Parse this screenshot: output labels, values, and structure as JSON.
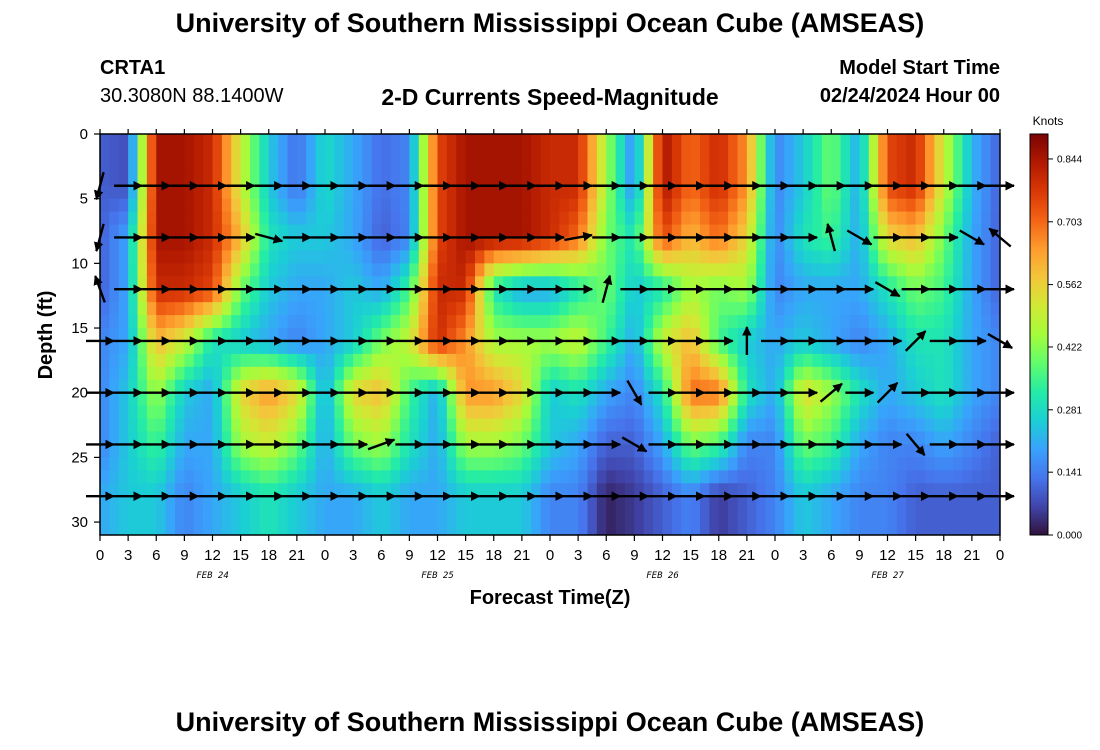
{
  "page": {
    "title": "University of Southern Mississippi Ocean Cube (AMSEAS)",
    "footer_title": "University of Southern Mississippi Ocean Cube (AMSEAS)",
    "station_id": "CRTA1",
    "station_coords": "30.3080N  88.1400W",
    "subtitle": "2-D Currents Speed-Magnitude",
    "model_start_label": "Model Start Time",
    "model_start_time": "02/24/2024 Hour 00"
  },
  "chart_data": {
    "type": "heatmap",
    "title": "2-D Currents Speed-Magnitude",
    "xlabel": "Forecast Time(Z)",
    "ylabel": "Depth (ft)",
    "x_unit": "hours from 02/24/2024 00Z",
    "xlim": [
      0,
      96
    ],
    "ylim": [
      0,
      31
    ],
    "y_inverted": true,
    "x_tick_step_hours": 3,
    "x_ticks": [
      "0",
      "3",
      "6",
      "9",
      "12",
      "15",
      "18",
      "21",
      "0",
      "3",
      "6",
      "9",
      "12",
      "15",
      "18",
      "21",
      "0",
      "3",
      "6",
      "9",
      "12",
      "15",
      "18",
      "21",
      "0",
      "3",
      "6",
      "9",
      "12",
      "15",
      "18",
      "21",
      "0"
    ],
    "day_labels": [
      {
        "label": "FEB 24",
        "hour": 12
      },
      {
        "label": "FEB 25",
        "hour": 36
      },
      {
        "label": "FEB 26",
        "hour": 60
      },
      {
        "label": "FEB 27",
        "hour": 84
      }
    ],
    "y_ticks": [
      0,
      5,
      10,
      15,
      20,
      25,
      30
    ],
    "colorbar": {
      "label": "Knots",
      "ticks": [
        "0.844",
        "0.703",
        "0.562",
        "0.422",
        "0.281",
        "0.141",
        "0.000"
      ],
      "tick_values": [
        0.844,
        0.703,
        0.562,
        0.422,
        0.281,
        0.141,
        0.0
      ],
      "range": [
        0.0,
        0.9
      ],
      "colors": [
        "#30123b",
        "#4145ab",
        "#4675ed",
        "#39a2fc",
        "#1bcfd4",
        "#24eca6",
        "#61fc6c",
        "#a4fc3b",
        "#d1e834",
        "#f3c63a",
        "#fe9b2d",
        "#f36315",
        "#d93806",
        "#b11901",
        "#7a0403"
      ]
    },
    "depth_layers": [
      4,
      8,
      12,
      16,
      20,
      24,
      28
    ],
    "layer_speed_profiles": [
      {
        "depth": 4,
        "speeds": [
          0.1,
          0.08,
          0.85,
          0.85,
          0.8,
          0.5,
          0.25,
          0.12,
          0.28,
          0.2,
          0.12,
          0.15,
          0.75,
          0.85,
          0.85,
          0.85,
          0.8,
          0.8,
          0.45,
          0.15,
          0.85,
          0.7,
          0.8,
          0.65,
          0.15,
          0.25,
          0.4,
          0.2,
          0.75,
          0.8,
          0.5,
          0.22,
          0.1
        ]
      },
      {
        "depth": 8,
        "speeds": [
          0.1,
          0.2,
          0.85,
          0.85,
          0.8,
          0.6,
          0.3,
          0.25,
          0.25,
          0.2,
          0.1,
          0.15,
          0.75,
          0.85,
          0.85,
          0.85,
          0.8,
          0.7,
          0.4,
          0.3,
          0.75,
          0.6,
          0.7,
          0.55,
          0.15,
          0.3,
          0.35,
          0.2,
          0.55,
          0.6,
          0.4,
          0.2,
          0.1
        ]
      },
      {
        "depth": 12,
        "speeds": [
          0.1,
          0.2,
          0.8,
          0.8,
          0.75,
          0.4,
          0.25,
          0.2,
          0.2,
          0.25,
          0.2,
          0.35,
          0.8,
          0.8,
          0.3,
          0.2,
          0.2,
          0.3,
          0.4,
          0.25,
          0.3,
          0.45,
          0.4,
          0.45,
          0.15,
          0.2,
          0.2,
          0.2,
          0.3,
          0.4,
          0.35,
          0.2,
          0.1
        ]
      },
      {
        "depth": 16,
        "speeds": [
          0.15,
          0.2,
          0.6,
          0.5,
          0.3,
          0.25,
          0.2,
          0.15,
          0.2,
          0.25,
          0.4,
          0.5,
          0.8,
          0.65,
          0.45,
          0.45,
          0.45,
          0.5,
          0.35,
          0.2,
          0.5,
          0.6,
          0.35,
          0.25,
          0.2,
          0.25,
          0.2,
          0.15,
          0.2,
          0.3,
          0.3,
          0.2,
          0.15
        ]
      },
      {
        "depth": 20,
        "speeds": [
          0.15,
          0.25,
          0.45,
          0.25,
          0.2,
          0.55,
          0.65,
          0.55,
          0.2,
          0.55,
          0.6,
          0.35,
          0.2,
          0.65,
          0.65,
          0.55,
          0.25,
          0.3,
          0.2,
          0.15,
          0.3,
          0.7,
          0.7,
          0.3,
          0.2,
          0.55,
          0.45,
          0.3,
          0.2,
          0.25,
          0.3,
          0.2,
          0.15
        ]
      },
      {
        "depth": 24,
        "speeds": [
          0.15,
          0.25,
          0.35,
          0.2,
          0.2,
          0.45,
          0.5,
          0.4,
          0.2,
          0.4,
          0.45,
          0.3,
          0.2,
          0.45,
          0.45,
          0.4,
          0.25,
          0.2,
          0.1,
          0.1,
          0.2,
          0.4,
          0.35,
          0.15,
          0.15,
          0.4,
          0.35,
          0.2,
          0.15,
          0.15,
          0.2,
          0.15,
          0.1
        ]
      },
      {
        "depth": 28,
        "speeds": [
          0.2,
          0.25,
          0.25,
          0.15,
          0.2,
          0.25,
          0.3,
          0.25,
          0.2,
          0.2,
          0.25,
          0.2,
          0.2,
          0.25,
          0.25,
          0.25,
          0.15,
          0.15,
          0.02,
          0.05,
          0.1,
          0.15,
          0.05,
          0.1,
          0.15,
          0.25,
          0.2,
          0.15,
          0.15,
          0.1,
          0.1,
          0.1,
          0.1
        ]
      }
    ],
    "vector_rows": [
      {
        "depth": 4,
        "vectors": [
          [
            0,
            195
          ],
          [
            3,
            90
          ],
          [
            6,
            90
          ],
          [
            9,
            90
          ],
          [
            12,
            90
          ],
          [
            15,
            90
          ],
          [
            18,
            90
          ],
          [
            21,
            90
          ],
          [
            24,
            90
          ],
          [
            27,
            90
          ],
          [
            30,
            90
          ],
          [
            33,
            90
          ],
          [
            36,
            90
          ],
          [
            39,
            90
          ],
          [
            42,
            90
          ],
          [
            45,
            90
          ],
          [
            48,
            90
          ],
          [
            51,
            90
          ],
          [
            54,
            90
          ],
          [
            57,
            90
          ],
          [
            60,
            90
          ],
          [
            63,
            90
          ],
          [
            66,
            90
          ],
          [
            69,
            90
          ],
          [
            72,
            90
          ],
          [
            75,
            90
          ],
          [
            78,
            90
          ],
          [
            81,
            90
          ],
          [
            84,
            90
          ],
          [
            87,
            90
          ],
          [
            90,
            90
          ],
          [
            93,
            90
          ],
          [
            96,
            90
          ]
        ]
      },
      {
        "depth": 8,
        "vectors": [
          [
            0,
            195
          ],
          [
            3,
            90
          ],
          [
            6,
            90
          ],
          [
            9,
            90
          ],
          [
            12,
            90
          ],
          [
            15,
            90
          ],
          [
            18,
            105
          ],
          [
            21,
            90
          ],
          [
            24,
            90
          ],
          [
            27,
            90
          ],
          [
            30,
            90
          ],
          [
            33,
            90
          ],
          [
            36,
            90
          ],
          [
            39,
            90
          ],
          [
            42,
            90
          ],
          [
            45,
            90
          ],
          [
            48,
            90
          ],
          [
            51,
            80
          ],
          [
            54,
            90
          ],
          [
            57,
            90
          ],
          [
            60,
            90
          ],
          [
            63,
            90
          ],
          [
            66,
            90
          ],
          [
            69,
            90
          ],
          [
            72,
            90
          ],
          [
            75,
            90
          ],
          [
            78,
            345
          ],
          [
            81,
            120
          ],
          [
            84,
            90
          ],
          [
            87,
            90
          ],
          [
            90,
            90
          ],
          [
            93,
            120
          ],
          [
            96,
            310
          ]
        ]
      },
      {
        "depth": 12,
        "vectors": [
          [
            0,
            340
          ],
          [
            3,
            90
          ],
          [
            6,
            90
          ],
          [
            9,
            90
          ],
          [
            12,
            90
          ],
          [
            15,
            90
          ],
          [
            18,
            90
          ],
          [
            21,
            90
          ],
          [
            24,
            90
          ],
          [
            27,
            90
          ],
          [
            30,
            90
          ],
          [
            33,
            90
          ],
          [
            36,
            90
          ],
          [
            39,
            90
          ],
          [
            42,
            90
          ],
          [
            45,
            90
          ],
          [
            48,
            90
          ],
          [
            51,
            90
          ],
          [
            54,
            15
          ],
          [
            57,
            90
          ],
          [
            60,
            90
          ],
          [
            63,
            90
          ],
          [
            66,
            90
          ],
          [
            69,
            90
          ],
          [
            72,
            90
          ],
          [
            75,
            90
          ],
          [
            78,
            90
          ],
          [
            81,
            90
          ],
          [
            84,
            120
          ],
          [
            87,
            90
          ],
          [
            90,
            90
          ],
          [
            93,
            90
          ],
          [
            96,
            90
          ]
        ]
      },
      {
        "depth": 16,
        "vectors": [
          [
            0,
            90
          ],
          [
            3,
            90
          ],
          [
            6,
            90
          ],
          [
            9,
            90
          ],
          [
            12,
            90
          ],
          [
            15,
            90
          ],
          [
            18,
            90
          ],
          [
            21,
            90
          ],
          [
            24,
            90
          ],
          [
            27,
            90
          ],
          [
            30,
            90
          ],
          [
            33,
            90
          ],
          [
            36,
            90
          ],
          [
            39,
            90
          ],
          [
            42,
            90
          ],
          [
            45,
            90
          ],
          [
            48,
            90
          ],
          [
            51,
            90
          ],
          [
            54,
            90
          ],
          [
            57,
            90
          ],
          [
            60,
            90
          ],
          [
            63,
            90
          ],
          [
            66,
            90
          ],
          [
            69,
            0
          ],
          [
            72,
            90
          ],
          [
            75,
            90
          ],
          [
            78,
            90
          ],
          [
            81,
            90
          ],
          [
            84,
            90
          ],
          [
            87,
            45
          ],
          [
            90,
            90
          ],
          [
            93,
            90
          ],
          [
            96,
            120
          ]
        ]
      },
      {
        "depth": 20,
        "vectors": [
          [
            0,
            90
          ],
          [
            3,
            90
          ],
          [
            6,
            90
          ],
          [
            9,
            90
          ],
          [
            12,
            90
          ],
          [
            15,
            90
          ],
          [
            18,
            90
          ],
          [
            21,
            90
          ],
          [
            24,
            90
          ],
          [
            27,
            90
          ],
          [
            30,
            90
          ],
          [
            33,
            90
          ],
          [
            36,
            90
          ],
          [
            39,
            90
          ],
          [
            42,
            90
          ],
          [
            45,
            90
          ],
          [
            48,
            90
          ],
          [
            51,
            90
          ],
          [
            54,
            90
          ],
          [
            57,
            150
          ],
          [
            60,
            90
          ],
          [
            63,
            90
          ],
          [
            66,
            90
          ],
          [
            69,
            90
          ],
          [
            72,
            90
          ],
          [
            75,
            90
          ],
          [
            78,
            50
          ],
          [
            81,
            90
          ],
          [
            84,
            45
          ],
          [
            87,
            90
          ],
          [
            90,
            90
          ],
          [
            93,
            90
          ],
          [
            96,
            90
          ]
        ]
      },
      {
        "depth": 24,
        "vectors": [
          [
            0,
            90
          ],
          [
            3,
            90
          ],
          [
            6,
            90
          ],
          [
            9,
            90
          ],
          [
            12,
            90
          ],
          [
            15,
            90
          ],
          [
            18,
            90
          ],
          [
            21,
            90
          ],
          [
            24,
            90
          ],
          [
            27,
            90
          ],
          [
            30,
            70
          ],
          [
            33,
            90
          ],
          [
            36,
            90
          ],
          [
            39,
            90
          ],
          [
            42,
            90
          ],
          [
            45,
            90
          ],
          [
            48,
            90
          ],
          [
            51,
            90
          ],
          [
            54,
            90
          ],
          [
            57,
            120
          ],
          [
            60,
            90
          ],
          [
            63,
            90
          ],
          [
            66,
            90
          ],
          [
            69,
            90
          ],
          [
            72,
            90
          ],
          [
            75,
            90
          ],
          [
            78,
            90
          ],
          [
            81,
            90
          ],
          [
            84,
            90
          ],
          [
            87,
            140
          ],
          [
            90,
            90
          ],
          [
            93,
            90
          ],
          [
            96,
            90
          ]
        ]
      },
      {
        "depth": 28,
        "vectors": [
          [
            0,
            90
          ],
          [
            3,
            90
          ],
          [
            6,
            90
          ],
          [
            9,
            90
          ],
          [
            12,
            90
          ],
          [
            15,
            90
          ],
          [
            18,
            90
          ],
          [
            21,
            90
          ],
          [
            24,
            90
          ],
          [
            27,
            90
          ],
          [
            30,
            90
          ],
          [
            33,
            90
          ],
          [
            36,
            90
          ],
          [
            39,
            90
          ],
          [
            42,
            90
          ],
          [
            45,
            90
          ],
          [
            48,
            90
          ],
          [
            51,
            90
          ],
          [
            54,
            90
          ],
          [
            57,
            90
          ],
          [
            60,
            90
          ],
          [
            63,
            90
          ],
          [
            66,
            90
          ],
          [
            69,
            90
          ],
          [
            72,
            90
          ],
          [
            75,
            90
          ],
          [
            78,
            90
          ],
          [
            81,
            90
          ],
          [
            84,
            90
          ],
          [
            87,
            90
          ],
          [
            90,
            90
          ],
          [
            93,
            90
          ],
          [
            96,
            90
          ]
        ]
      }
    ]
  }
}
